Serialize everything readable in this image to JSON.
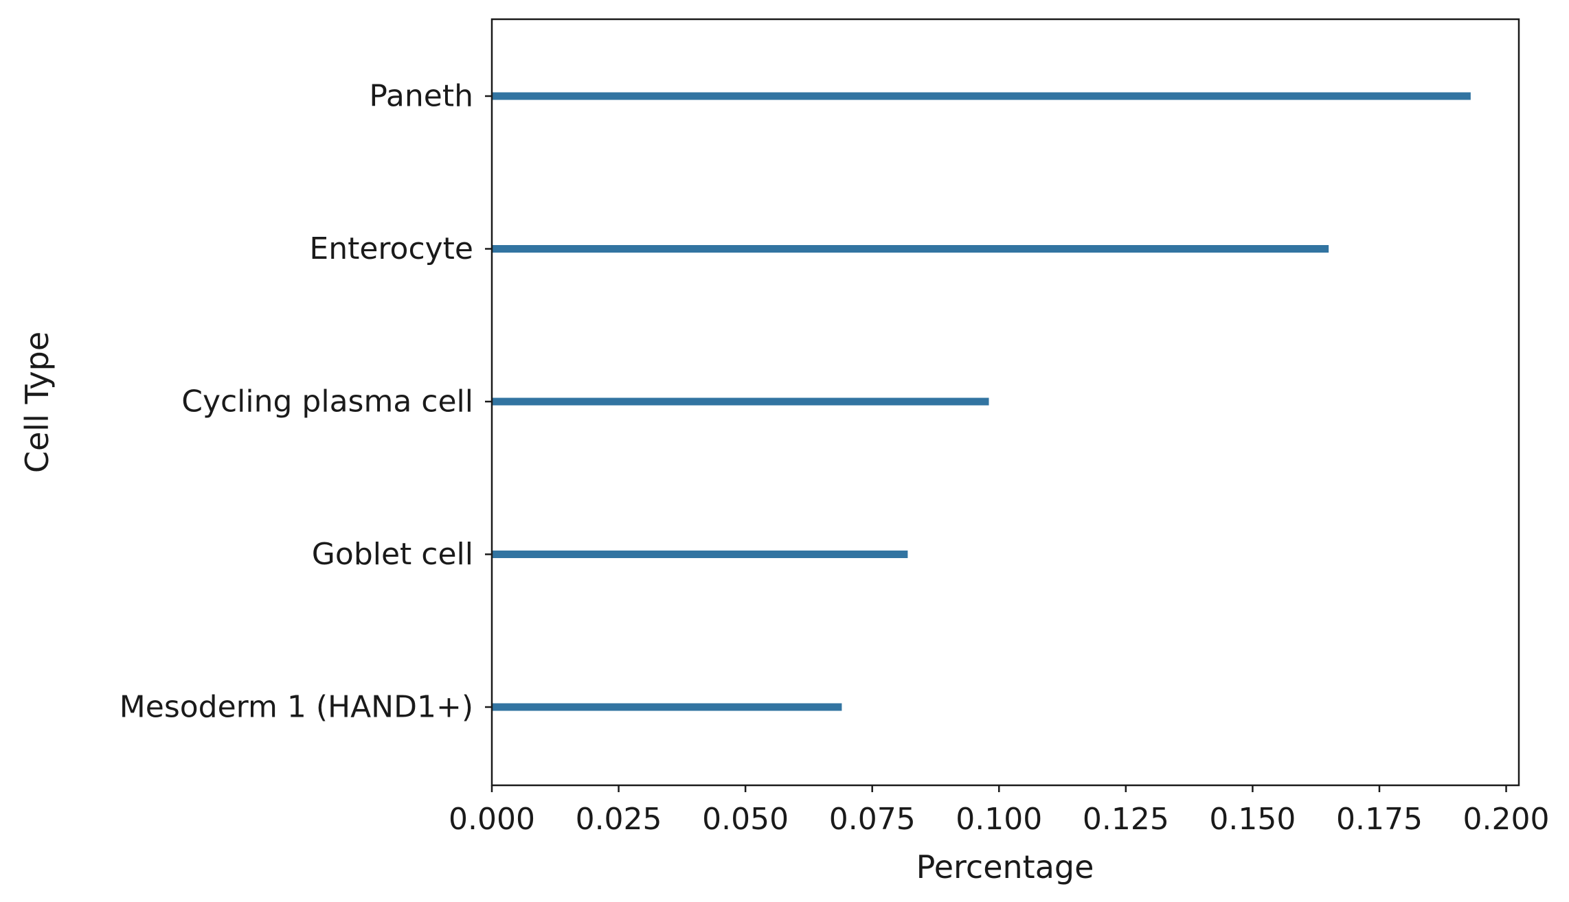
{
  "chart_data": {
    "type": "bar",
    "orientation": "horizontal",
    "title": "",
    "xlabel": "Percentage",
    "ylabel": "Cell Type",
    "categories": [
      "Paneth",
      "Enterocyte",
      "Cycling plasma cell",
      "Goblet cell",
      "Mesoderm 1 (HAND1+)"
    ],
    "values": [
      0.193,
      0.165,
      0.098,
      0.082,
      0.069
    ],
    "xlim": [
      0.0,
      0.2025
    ],
    "xticks": [
      "0.000",
      "0.025",
      "0.050",
      "0.075",
      "0.100",
      "0.125",
      "0.150",
      "0.175",
      "0.200"
    ],
    "grid": false,
    "bar_color": "#3274a1"
  }
}
